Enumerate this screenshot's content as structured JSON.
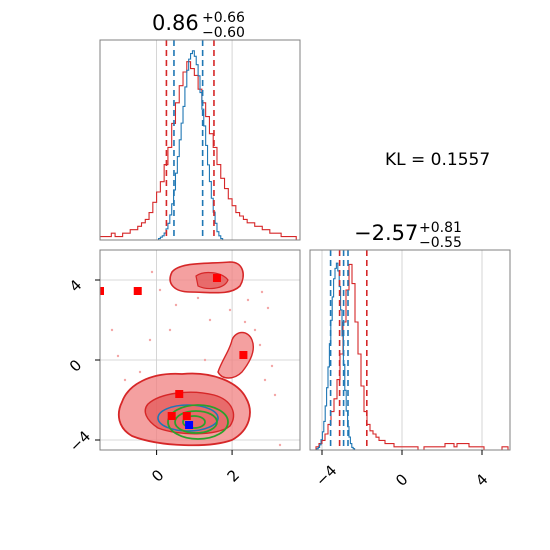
{
  "chart_data": {
    "type": "corner",
    "colors": {
      "red": "#d62728",
      "red_fill": "#f08080",
      "blue": "#1f77b4",
      "green": "#2ca02c",
      "grid": "#cccccc",
      "frame": "#808080",
      "marker_red": "#ff0000",
      "marker_blue": "#0000ff"
    },
    "annotation": {
      "text": "KL = 0.1557"
    },
    "params": [
      {
        "title": "0.86",
        "title_plus": "+0.66",
        "title_minus": "−0.60",
        "median": 0.86,
        "plus": 0.66,
        "minus": 0.6,
        "range": [
          -1.5,
          3.8
        ],
        "ticks": [
          0,
          2
        ],
        "tick_labels": [
          "0",
          "2"
        ],
        "red_quantiles": [
          0.26,
          1.52
        ],
        "blue_quantiles": [
          0.46,
          1.22
        ]
      },
      {
        "title": "−2.57",
        "title_plus": "+0.81",
        "title_minus": "−0.55",
        "median": -2.57,
        "plus": 0.81,
        "minus": 0.55,
        "range": [
          -4.6,
          5.4
        ],
        "ticks": [
          -4,
          0,
          4
        ],
        "tick_labels": [
          "−4",
          "0",
          "4"
        ],
        "red_quantiles": [
          -3.12,
          -1.76
        ],
        "blue_quantiles": [
          -3.57,
          -2.92,
          -2.7
        ]
      }
    ],
    "hist1_red": {
      "start": -1.5,
      "width": 0.1,
      "values": [
        1,
        1,
        1,
        2,
        1,
        1,
        2,
        2,
        3,
        3,
        4,
        5,
        6,
        8,
        11,
        14,
        17,
        22,
        27,
        34,
        40,
        45,
        49,
        52,
        50,
        48,
        44,
        40,
        36,
        31,
        27,
        22,
        18,
        15,
        12,
        10,
        8,
        7,
        6,
        5,
        5,
        4,
        4,
        3,
        3,
        2,
        2,
        2,
        1,
        1,
        1,
        1,
        0
      ]
    },
    "hist1_blue": {
      "start": 0.0,
      "width": 0.05,
      "values": [
        0,
        1,
        2,
        3,
        5,
        8,
        12,
        18,
        26,
        36,
        48,
        60,
        72,
        84,
        96,
        110,
        122,
        130,
        134,
        136,
        132,
        126,
        118,
        106,
        94,
        82,
        68,
        54,
        42,
        30,
        20,
        12,
        6,
        3,
        1
      ]
    },
    "hist2_red": {
      "start": -4.6,
      "width": 0.15,
      "values": [
        0,
        0,
        1,
        2,
        3,
        5,
        8,
        12,
        16,
        22,
        30,
        40,
        50,
        58,
        52,
        40,
        30,
        20,
        12,
        8,
        6,
        5,
        4,
        3,
        3,
        2,
        2,
        2,
        1,
        1,
        1,
        1,
        1,
        1,
        1,
        1,
        0,
        0,
        1,
        1,
        1,
        1,
        1,
        1,
        1,
        2,
        2,
        2,
        1,
        2,
        2,
        2,
        2,
        1,
        1,
        1,
        1,
        1,
        0,
        0,
        0,
        0,
        0,
        0,
        1,
        1,
        0
      ]
    },
    "hist2_blue": {
      "start": -4.4,
      "width": 0.07,
      "values": [
        0,
        0,
        1,
        2,
        4,
        8,
        14,
        22,
        34,
        48,
        64,
        82,
        100,
        118,
        132,
        140,
        144,
        138,
        126,
        108,
        88,
        66,
        46,
        30,
        18,
        10,
        5,
        2,
        1,
        0
      ]
    },
    "scatter_red_markers": [
      [
        -1.5,
        3.45
      ],
      [
        -0.5,
        3.45
      ],
      [
        1.6,
        4.1
      ],
      [
        2.3,
        0.25
      ],
      [
        0.6,
        -1.7
      ],
      [
        0.4,
        -2.8
      ],
      [
        0.8,
        -2.8
      ]
    ],
    "scatter_blue_markers": [
      [
        0.86,
        -3.25
      ]
    ],
    "axes_ranges": {
      "x": [
        -1.5,
        3.8
      ],
      "y": [
        -4.5,
        5.5
      ]
    },
    "grid": true
  }
}
